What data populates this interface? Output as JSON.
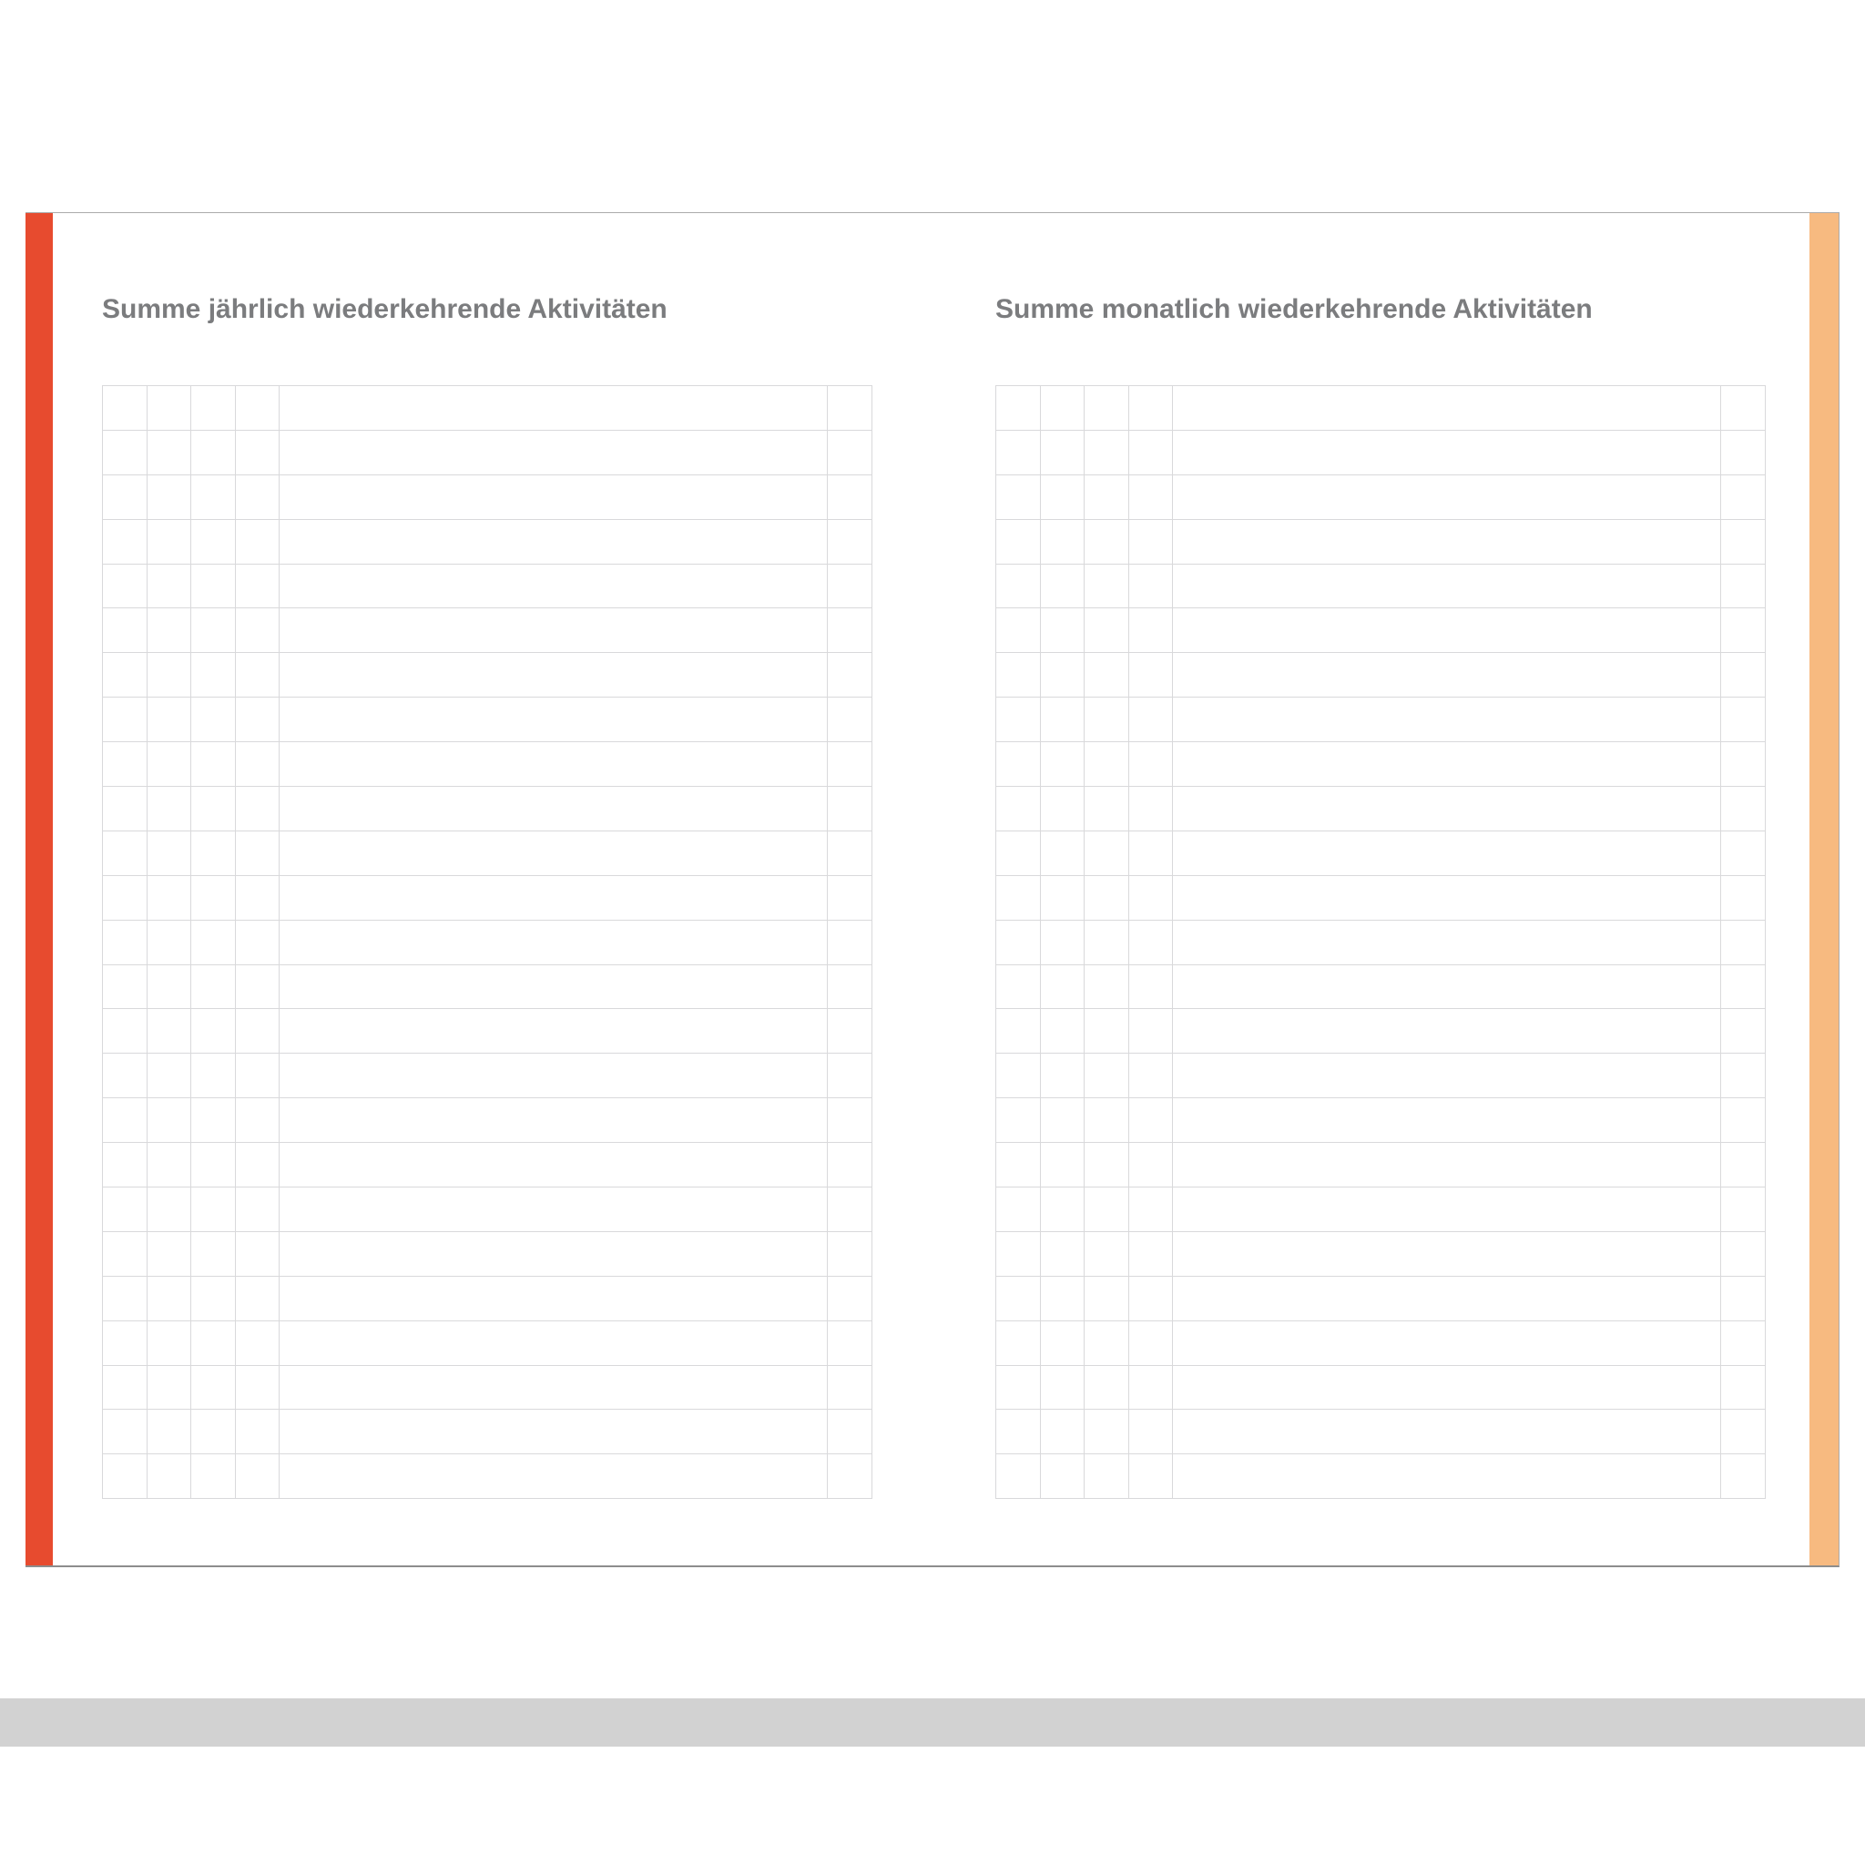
{
  "pages": {
    "left": {
      "title": "Summe jährlich wiederkehrende Aktivitäten",
      "table": {
        "rows": 25,
        "columns": 6,
        "narrow_lead_columns": 4,
        "wide_columns": 1,
        "narrow_trail_columns": 1,
        "content": "empty"
      }
    },
    "right": {
      "title": "Summe monatlich wiederkehrende Aktivitäten",
      "table": {
        "rows": 25,
        "columns": 6,
        "narrow_lead_columns": 4,
        "wide_columns": 1,
        "narrow_trail_columns": 1,
        "content": "empty"
      }
    }
  },
  "colors": {
    "left_edge_stripe": "#e74b2f",
    "right_edge_stripe": "#f7ba80",
    "grid_line": "#d9d9db",
    "heading_text": "#7b7c7e",
    "page_border": "#ababab",
    "bottom_bar": "#d2d2d2"
  }
}
